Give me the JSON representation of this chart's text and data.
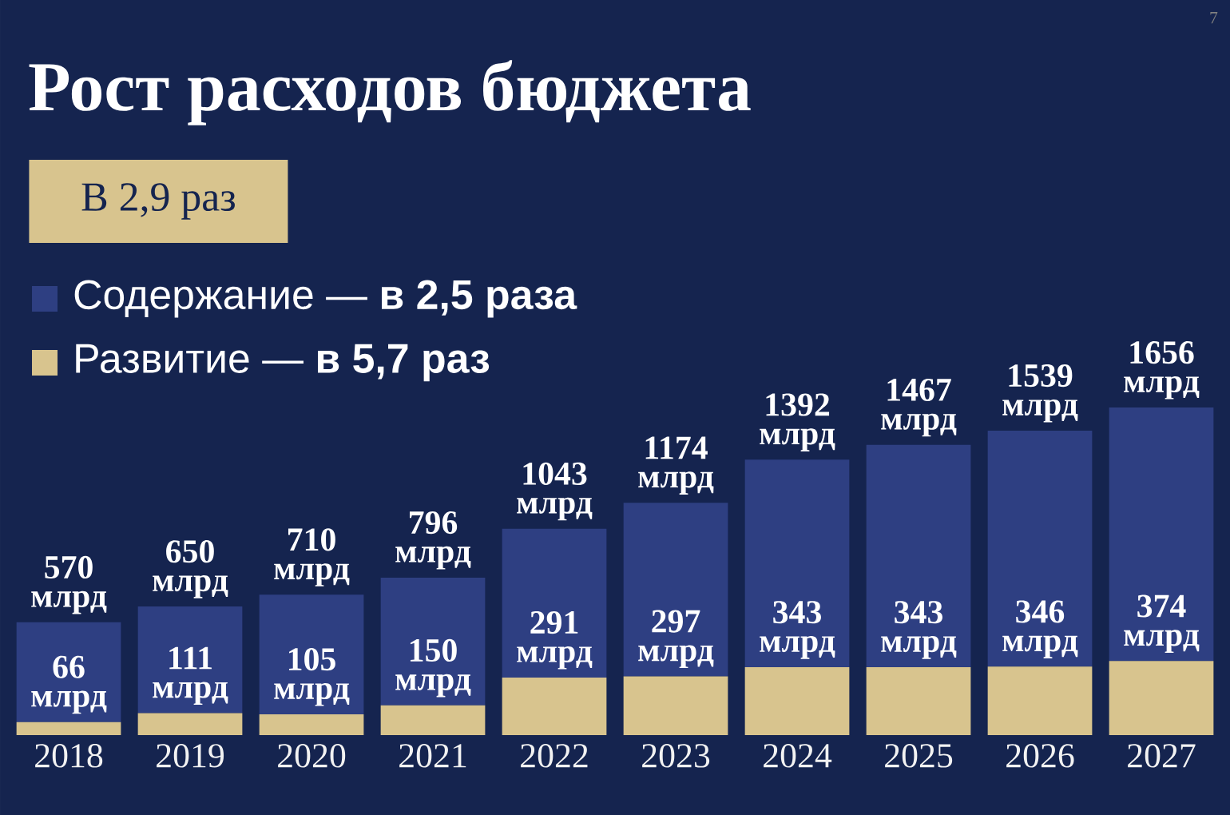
{
  "chart_data": {
    "type": "bar",
    "title": "Рост расходов бюджета",
    "subtitle": "В 2,9 раз",
    "categories": [
      "2018",
      "2019",
      "2020",
      "2021",
      "2022",
      "2023",
      "2024",
      "2025",
      "2026",
      "2027"
    ],
    "stacked": true,
    "legend": "top left",
    "series": [
      {
        "name": "Развитие — **в 5,7 раз**",
        "color": "#d8c48e",
        "values": [
          66,
          111,
          105,
          150,
          291,
          297,
          343,
          343,
          346,
          374
        ],
        "value_labels": [
          "66 млрд",
          "111 млрд",
          "105 млрд",
          "150 млрд",
          "291 млрд",
          "297 млрд",
          "343 млрд",
          "343 млрд",
          "346 млрд",
          "374 млрд"
        ]
      },
      {
        "name": "Содержание — **в 2,5 раза**",
        "color": "#2e3f82",
        "values": [
          504,
          539,
          605,
          646,
          752,
          877,
          1049,
          1124,
          1193,
          1282
        ]
      }
    ],
    "totals": [
      "570 млрд",
      "650 млрд",
      "710 млрд",
      "796 млрд",
      "1043 млрд",
      "1174 млрд",
      "1392 млрд",
      "1467 млрд",
      "1539 млрд",
      "1656 млрд"
    ],
    "annotations": [
      "7"
    ]
  }
}
